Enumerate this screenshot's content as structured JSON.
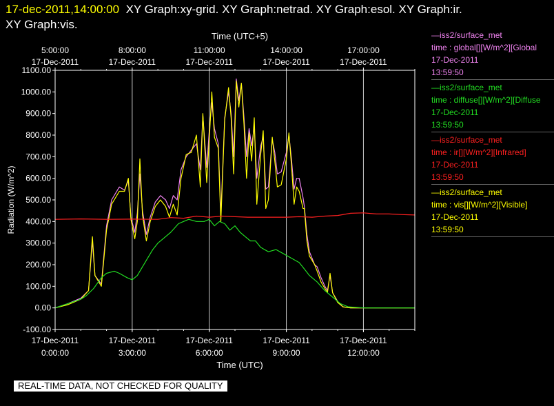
{
  "header": {
    "timestamp": "17-dec-2011,14:00:00",
    "line1_rest": "XY Graph:xy-grid.  XY Graph:netrad.  XY Graph:esol.  XY Graph:ir.",
    "line2": "XY Graph:vis."
  },
  "notice": "REAL-TIME DATA, NOT CHECKED FOR QUALITY",
  "legend": [
    {
      "source": "—iss2/surface_met",
      "var": "time : global[][W/m^2][Global",
      "date": "17-Dec-2011",
      "time": "13:59:50",
      "color": "#ee82ee"
    },
    {
      "source": "—iss2/surface_met",
      "var": "time : diffuse[][W/m^2][Diffuse",
      "date": "17-Dec-2011",
      "time": "13:59:50",
      "color": "#22dd22"
    },
    {
      "source": "—iss2/surface_met",
      "var": "time : ir[][W/m^2][Infrared]",
      "date": "17-Dec-2011",
      "time": "13:59:50",
      "color": "#ff2020"
    },
    {
      "source": "—iss2/surface_met",
      "var": "time : vis[][W/m^2][Visible]",
      "date": "17-Dec-2011",
      "time": "13:59:50",
      "color": "#ffff00"
    }
  ],
  "chart_data": {
    "type": "line",
    "xlabel": "Time (UTC)",
    "x2label": "Time (UTC+5)",
    "ylabel": "Radiation (W/m^2)",
    "xlim": [
      0,
      14
    ],
    "ylim": [
      -100,
      1100
    ],
    "grid": true,
    "yticks": [
      "1100.00",
      "1000.00",
      "900.00",
      "800.00",
      "700.00",
      "600.00",
      "500.00",
      "400.00",
      "300.00",
      "200.00",
      "100.00",
      "0.00",
      "-100.00"
    ],
    "xticks": [
      {
        "x": 0,
        "date": "17-Dec-2011",
        "time": "0:00:00"
      },
      {
        "x": 3,
        "date": "17-Dec-2011",
        "time": "3:00:00"
      },
      {
        "x": 6,
        "date": "17-Dec-2011",
        "time": "6:00:00"
      },
      {
        "x": 9,
        "date": "17-Dec-2011",
        "time": "9:00:00"
      },
      {
        "x": 12,
        "date": "17-Dec-2011",
        "time": "12:00:00"
      }
    ],
    "x2ticks": [
      {
        "x": -0.0,
        "time": "5:00:00",
        "date": "17-Dec-2011"
      },
      {
        "x": 3,
        "time": "8:00:00",
        "date": "17-Dec-2011"
      },
      {
        "x": 6,
        "time": "11:00:00",
        "date": "17-Dec-2011"
      },
      {
        "x": 9,
        "time": "14:00:00",
        "date": "17-Dec-2011"
      },
      {
        "x": 12,
        "time": "17:00:00",
        "date": "17-Dec-2011"
      }
    ],
    "series": [
      {
        "name": "global",
        "color": "#ee82ee",
        "points": [
          [
            0,
            0
          ],
          [
            0.5,
            20
          ],
          [
            1,
            45
          ],
          [
            1.3,
            80
          ],
          [
            1.45,
            310
          ],
          [
            1.55,
            150
          ],
          [
            1.8,
            110
          ],
          [
            2,
            380
          ],
          [
            2.2,
            500
          ],
          [
            2.5,
            560
          ],
          [
            2.7,
            545
          ],
          [
            2.85,
            590
          ],
          [
            2.95,
            420
          ],
          [
            3.1,
            350
          ],
          [
            3.2,
            440
          ],
          [
            3.3,
            620
          ],
          [
            3.4,
            450
          ],
          [
            3.55,
            340
          ],
          [
            3.7,
            420
          ],
          [
            3.9,
            490
          ],
          [
            4.1,
            520
          ],
          [
            4.3,
            500
          ],
          [
            4.45,
            460
          ],
          [
            4.6,
            520
          ],
          [
            4.75,
            500
          ],
          [
            4.9,
            640
          ],
          [
            5.1,
            700
          ],
          [
            5.3,
            730
          ],
          [
            5.5,
            760
          ],
          [
            5.65,
            640
          ],
          [
            5.75,
            890
          ],
          [
            5.9,
            650
          ],
          [
            6,
            820
          ],
          [
            6.1,
            950
          ],
          [
            6.2,
            830
          ],
          [
            6.35,
            760
          ],
          [
            6.45,
            430
          ],
          [
            6.6,
            880
          ],
          [
            6.75,
            1000
          ],
          [
            6.85,
            900
          ],
          [
            6.95,
            700
          ],
          [
            7.05,
            1060
          ],
          [
            7.15,
            960
          ],
          [
            7.25,
            1040
          ],
          [
            7.35,
            880
          ],
          [
            7.45,
            700
          ],
          [
            7.55,
            830
          ],
          [
            7.65,
            750
          ],
          [
            7.75,
            840
          ],
          [
            7.85,
            600
          ],
          [
            8,
            750
          ],
          [
            8.1,
            790
          ],
          [
            8.2,
            550
          ],
          [
            8.3,
            560
          ],
          [
            8.45,
            780
          ],
          [
            8.55,
            720
          ],
          [
            8.65,
            620
          ],
          [
            8.8,
            630
          ],
          [
            9,
            720
          ],
          [
            9.1,
            800
          ],
          [
            9.2,
            690
          ],
          [
            9.3,
            550
          ],
          [
            9.4,
            600
          ],
          [
            9.5,
            600
          ],
          [
            9.65,
            510
          ],
          [
            9.7,
            470
          ],
          [
            9.8,
            340
          ],
          [
            9.9,
            260
          ],
          [
            10,
            230
          ],
          [
            10.1,
            200
          ],
          [
            10.2,
            190
          ],
          [
            10.35,
            140
          ],
          [
            10.5,
            100
          ],
          [
            10.6,
            80
          ],
          [
            10.7,
            150
          ],
          [
            10.8,
            70
          ],
          [
            11,
            30
          ],
          [
            11.2,
            5
          ],
          [
            11.5,
            0
          ],
          [
            14,
            0
          ]
        ]
      },
      {
        "name": "vis",
        "color": "#ffff00",
        "points": [
          [
            0,
            0
          ],
          [
            0.5,
            15
          ],
          [
            1,
            40
          ],
          [
            1.3,
            80
          ],
          [
            1.45,
            330
          ],
          [
            1.55,
            150
          ],
          [
            1.8,
            100
          ],
          [
            2,
            360
          ],
          [
            2.2,
            480
          ],
          [
            2.5,
            540
          ],
          [
            2.7,
            540
          ],
          [
            2.85,
            600
          ],
          [
            2.95,
            410
          ],
          [
            3.1,
            320
          ],
          [
            3.2,
            400
          ],
          [
            3.3,
            690
          ],
          [
            3.4,
            430
          ],
          [
            3.55,
            310
          ],
          [
            3.7,
            400
          ],
          [
            3.9,
            470
          ],
          [
            4.1,
            500
          ],
          [
            4.3,
            470
          ],
          [
            4.45,
            420
          ],
          [
            4.6,
            480
          ],
          [
            4.75,
            430
          ],
          [
            4.9,
            600
          ],
          [
            5.1,
            710
          ],
          [
            5.3,
            720
          ],
          [
            5.5,
            800
          ],
          [
            5.65,
            560
          ],
          [
            5.75,
            900
          ],
          [
            5.9,
            580
          ],
          [
            6,
            780
          ],
          [
            6.1,
            1000
          ],
          [
            6.2,
            790
          ],
          [
            6.35,
            740
          ],
          [
            6.45,
            400
          ],
          [
            6.6,
            870
          ],
          [
            6.75,
            1020
          ],
          [
            6.85,
            880
          ],
          [
            6.95,
            620
          ],
          [
            7.05,
            1050
          ],
          [
            7.15,
            930
          ],
          [
            7.25,
            1040
          ],
          [
            7.35,
            850
          ],
          [
            7.45,
            600
          ],
          [
            7.55,
            810
          ],
          [
            7.65,
            680
          ],
          [
            7.75,
            880
          ],
          [
            7.85,
            480
          ],
          [
            8,
            710
          ],
          [
            8.1,
            820
          ],
          [
            8.2,
            460
          ],
          [
            8.3,
            500
          ],
          [
            8.45,
            790
          ],
          [
            8.55,
            680
          ],
          [
            8.65,
            560
          ],
          [
            8.8,
            570
          ],
          [
            9,
            690
          ],
          [
            9.1,
            810
          ],
          [
            9.2,
            660
          ],
          [
            9.3,
            480
          ],
          [
            9.4,
            560
          ],
          [
            9.5,
            540
          ],
          [
            9.65,
            460
          ],
          [
            9.7,
            460
          ],
          [
            9.8,
            310
          ],
          [
            9.9,
            240
          ],
          [
            10,
            220
          ],
          [
            10.1,
            200
          ],
          [
            10.2,
            170
          ],
          [
            10.35,
            120
          ],
          [
            10.5,
            90
          ],
          [
            10.6,
            70
          ],
          [
            10.7,
            160
          ],
          [
            10.8,
            70
          ],
          [
            11,
            25
          ],
          [
            11.2,
            5
          ],
          [
            11.5,
            0
          ],
          [
            14,
            0
          ]
        ]
      },
      {
        "name": "diffuse",
        "color": "#22dd22",
        "points": [
          [
            0,
            0
          ],
          [
            0.5,
            20
          ],
          [
            1,
            40
          ],
          [
            1.2,
            55
          ],
          [
            1.5,
            90
          ],
          [
            1.8,
            140
          ],
          [
            2,
            160
          ],
          [
            2.3,
            170
          ],
          [
            2.5,
            160
          ],
          [
            2.8,
            140
          ],
          [
            3,
            130
          ],
          [
            3.2,
            150
          ],
          [
            3.4,
            190
          ],
          [
            3.6,
            230
          ],
          [
            3.8,
            270
          ],
          [
            4,
            300
          ],
          [
            4.2,
            320
          ],
          [
            4.5,
            350
          ],
          [
            4.8,
            390
          ],
          [
            5,
            400
          ],
          [
            5.2,
            410
          ],
          [
            5.5,
            400
          ],
          [
            5.8,
            400
          ],
          [
            6,
            410
          ],
          [
            6.2,
            380
          ],
          [
            6.4,
            400
          ],
          [
            6.6,
            390
          ],
          [
            6.8,
            360
          ],
          [
            7,
            380
          ],
          [
            7.2,
            350
          ],
          [
            7.4,
            330
          ],
          [
            7.6,
            310
          ],
          [
            7.8,
            310
          ],
          [
            8,
            280
          ],
          [
            8.3,
            260
          ],
          [
            8.6,
            270
          ],
          [
            8.9,
            250
          ],
          [
            9.2,
            230
          ],
          [
            9.5,
            210
          ],
          [
            9.7,
            180
          ],
          [
            9.9,
            150
          ],
          [
            10.2,
            120
          ],
          [
            10.5,
            80
          ],
          [
            10.8,
            50
          ],
          [
            11.1,
            20
          ],
          [
            11.4,
            5
          ],
          [
            12,
            0
          ],
          [
            14,
            0
          ]
        ]
      },
      {
        "name": "ir",
        "color": "#ff2020",
        "points": [
          [
            0,
            410
          ],
          [
            1,
            412
          ],
          [
            2,
            410
          ],
          [
            3,
            411
          ],
          [
            4,
            410
          ],
          [
            4.5,
            418
          ],
          [
            5,
            415
          ],
          [
            5.5,
            425
          ],
          [
            6,
            420
          ],
          [
            6.5,
            425
          ],
          [
            7,
            422
          ],
          [
            7.5,
            420
          ],
          [
            8,
            420
          ],
          [
            8.5,
            420
          ],
          [
            9,
            420
          ],
          [
            9.5,
            422
          ],
          [
            10,
            420
          ],
          [
            10.5,
            425
          ],
          [
            11,
            428
          ],
          [
            11.5,
            438
          ],
          [
            12,
            440
          ],
          [
            12.5,
            435
          ],
          [
            13,
            435
          ],
          [
            13.5,
            432
          ],
          [
            14,
            430
          ]
        ]
      }
    ]
  }
}
